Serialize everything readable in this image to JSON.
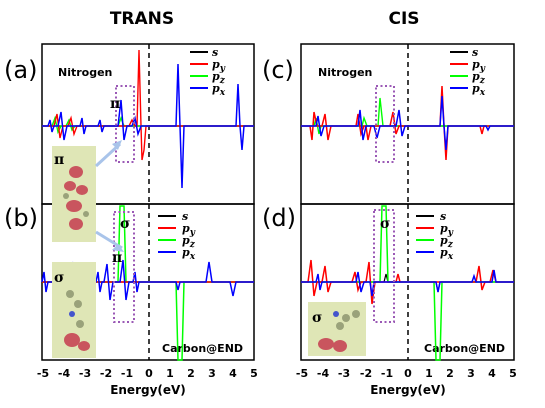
{
  "figure": {
    "col_titles": [
      "TRANS",
      "CIS"
    ],
    "panel_letters": [
      "(a)",
      "(b)",
      "(c)",
      "(d)"
    ],
    "xlabel": "Energy(eV)",
    "xticks": [
      "-5",
      "-4",
      "-3",
      "-2",
      "-1",
      "0",
      "1",
      "2",
      "3",
      "4",
      "5"
    ],
    "label_nitrogen": "Nitrogen",
    "label_carbon": "Carbon@END",
    "legend": [
      "s",
      "p",
      "p",
      "p"
    ],
    "legend_subs": [
      "",
      "y",
      "z",
      "x"
    ],
    "greek_pi": "π",
    "greek_sigma": "σ",
    "colors": {
      "s": "#000000",
      "py": "#ff0000",
      "pz": "#00ff00",
      "px": "#0000ff",
      "box": "#9b59b6",
      "inset": "#dfe6b6"
    }
  },
  "chart_data": [
    {
      "type": "line",
      "panel": "(a)",
      "title": "TRANS",
      "xlim": [
        -5,
        5
      ],
      "series": [
        {
          "name": "s",
          "x": [
            -5,
            -3.9,
            -3.5,
            5
          ],
          "y": [
            0,
            0.1,
            -0.1,
            0
          ]
        },
        {
          "name": "py",
          "x": [
            -4.4,
            -3.9,
            -0.3,
            0.0,
            0.3
          ],
          "y": [
            0.4,
            -0.4,
            0.5,
            3.0,
            -1.2
          ]
        },
        {
          "name": "pz",
          "x": [
            -4.3,
            -3.9,
            -1.0
          ],
          "y": [
            0.4,
            -0.3,
            0.4
          ]
        },
        {
          "name": "px",
          "x": [
            -4.2,
            -3.5,
            -2.3,
            -1.1,
            -0.6,
            1.5,
            1.6,
            4.3,
            4.4
          ],
          "y": [
            0.6,
            -0.5,
            0.3,
            1.0,
            -0.7,
            2.3,
            -2.1,
            1.4,
            -0.9
          ]
        }
      ]
    },
    {
      "type": "line",
      "panel": "(b)",
      "title": "",
      "xlim": [
        -5,
        5
      ],
      "series": [
        {
          "name": "s",
          "x": [
            -4.2,
            -3.9
          ],
          "y": [
            0.3,
            -0.2
          ]
        },
        {
          "name": "py",
          "x": [
            -4.2,
            -3.9
          ],
          "y": [
            0.3,
            -0.3
          ]
        },
        {
          "name": "pz",
          "x": [
            -1.0,
            1.5
          ],
          "y": [
            2.5,
            -2.5
          ]
        },
        {
          "name": "px",
          "x": [
            -4.9,
            -3.9,
            -3.4,
            -2.3,
            -1.8,
            -1.1,
            -0.5,
            1.5,
            3.5,
            4.5
          ],
          "y": [
            0.5,
            -0.4,
            0.8,
            -0.5,
            0.9,
            -0.8,
            0.5,
            -0.7,
            0.8,
            -0.6
          ]
        }
      ]
    },
    {
      "type": "line",
      "panel": "(c)",
      "title": "CIS",
      "xlim": [
        -5,
        5
      ],
      "series": [
        {
          "name": "s",
          "x": [
            -5,
            3.7,
            5
          ],
          "y": [
            0,
            0.1,
            0
          ]
        },
        {
          "name": "py",
          "x": [
            -4.6,
            -3.8,
            -2.0,
            -1.4,
            -0.6,
            1.6,
            1.8,
            3.7
          ],
          "y": [
            -0.8,
            0.6,
            0.4,
            -0.6,
            0.5,
            1.7,
            -1.7,
            -0.3
          ]
        },
        {
          "name": "pz",
          "x": [
            -4.2,
            -3.5,
            -1.9,
            -1.0
          ],
          "y": [
            0.5,
            -0.5,
            0.4,
            1.3
          ]
        },
        {
          "name": "px",
          "x": [
            -4.2,
            -3.6,
            -1.9,
            -1.1,
            -0.3,
            1.6,
            3.8
          ],
          "y": [
            0.5,
            -0.4,
            0.6,
            -0.5,
            0.7,
            1.4,
            -0.3
          ]
        }
      ]
    },
    {
      "type": "line",
      "panel": "(d)",
      "title": "",
      "xlim": [
        -5,
        5
      ],
      "series": [
        {
          "name": "s",
          "x": [
            -1.2,
            1.5
          ],
          "y": [
            0.2,
            -0.3
          ]
        },
        {
          "name": "py",
          "x": [
            -4.6,
            -4.0,
            -3.4,
            -2.3,
            -1.6,
            -0.8,
            2.5,
            2.8,
            3.6
          ],
          "y": [
            0.8,
            -0.6,
            0.5,
            -0.4,
            0.7,
            -0.8,
            0.6,
            -0.5,
            0.7
          ]
        },
        {
          "name": "pz",
          "x": [
            -1.1,
            1.4
          ],
          "y": [
            2.8,
            -2.8
          ]
        },
        {
          "name": "px",
          "x": [
            -4.2,
            -3.7,
            -2.1,
            -1.3,
            1.5,
            2.6,
            3.8
          ],
          "y": [
            0.4,
            -0.3,
            0.5,
            -0.5,
            -0.4,
            0.4,
            0.5
          ]
        }
      ]
    }
  ]
}
